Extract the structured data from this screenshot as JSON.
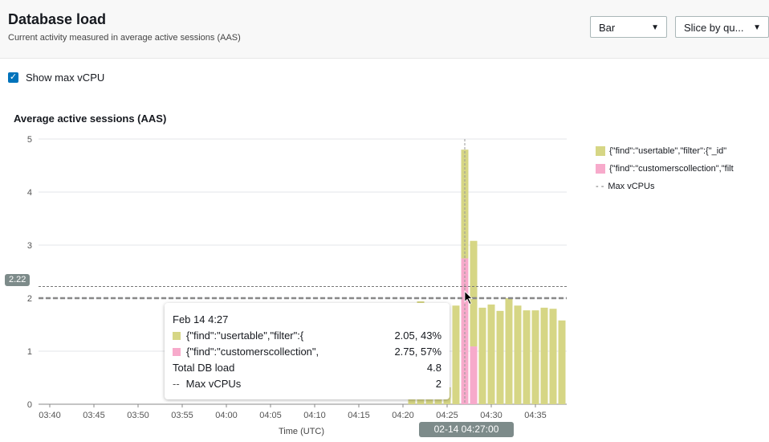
{
  "header": {
    "title": "Database load",
    "subtitle": "Current activity measured in average active sessions (AAS)"
  },
  "controls": {
    "chart_type": "Bar",
    "slice_by": "Slice by qu..."
  },
  "show_max_vcpu": {
    "label": "Show max vCPU",
    "checked": true
  },
  "colors": {
    "usertable": "#d6d685",
    "customerscollection": "#f7aacb",
    "accent": "#0073bb"
  },
  "chart_data": {
    "type": "bar",
    "stacked": true,
    "title": "Average active sessions (AAS)",
    "xlabel": "Time (UTC)",
    "ylabel": "",
    "ylim": [
      0,
      5
    ],
    "yticks": [
      "0",
      "1",
      "2",
      "3",
      "4",
      "5"
    ],
    "xticks": [
      "03:40",
      "03:45",
      "03:50",
      "03:55",
      "04:00",
      "04:05",
      "04:10",
      "04:15",
      "04:20",
      "04:25",
      "04:30",
      "04:35"
    ],
    "categories": [
      "04:21",
      "04:22",
      "04:23",
      "04:24",
      "04:25",
      "04:26",
      "04:27",
      "04:28",
      "04:29",
      "04:30",
      "04:31",
      "04:32",
      "04:33",
      "04:34",
      "04:35",
      "04:36",
      "04:37",
      "04:38"
    ],
    "series": [
      {
        "name": "{\"find\":\"usertable\",\"filter\":{\"_id\"",
        "values": [
          1.9,
          1.94,
          1.9,
          1.9,
          0.32,
          1.86,
          2.05,
          1.99,
          1.82,
          1.88,
          1.76,
          2.0,
          1.86,
          1.77,
          1.77,
          1.82,
          1.8,
          1.58
        ]
      },
      {
        "name": "{\"find\":\"customerscollection\",\"filt",
        "values": [
          0,
          0,
          0,
          0,
          0,
          0,
          2.75,
          1.09,
          0,
          0,
          0,
          0,
          0,
          0,
          0,
          0,
          0,
          0
        ]
      }
    ],
    "max_vcpus": {
      "name": "Max vCPUs",
      "value": 2
    },
    "grid": true,
    "legend": "right",
    "crosshair": {
      "y_label": "2.22",
      "x_label": "02-14 04:27:00"
    }
  },
  "tooltip": {
    "title": "Feb 14 4:27",
    "rows": [
      {
        "label": "{\"find\":\"usertable\",\"filter\":{",
        "value": "2.05, 43%"
      },
      {
        "label": "{\"find\":\"customerscollection\",",
        "value": "2.75, 57%"
      },
      {
        "label": "Total DB load",
        "value": "4.8"
      },
      {
        "label": "Max vCPUs",
        "value": "2"
      }
    ]
  }
}
